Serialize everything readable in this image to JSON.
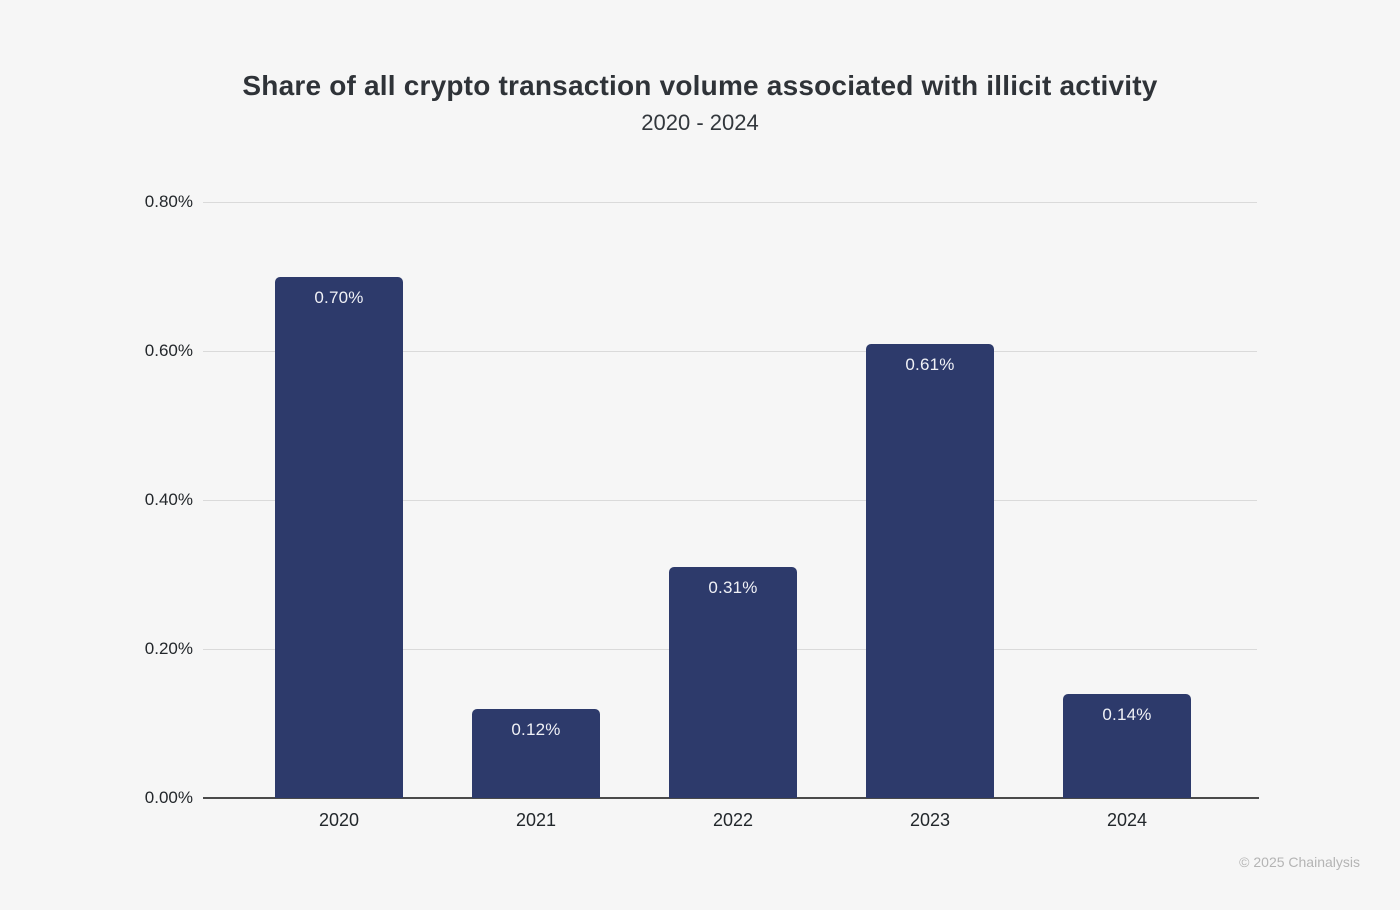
{
  "page": {
    "background_color": "#f6f6f6"
  },
  "header": {
    "title": "Share of all crypto transaction volume associated with illicit activity",
    "subtitle": "2020 - 2024"
  },
  "footer": {
    "attribution": "© 2025 Chainalysis"
  },
  "chart_data": {
    "type": "bar",
    "title": "Share of all crypto transaction volume associated with illicit activity",
    "subtitle": "2020 - 2024",
    "categories": [
      "2020",
      "2021",
      "2022",
      "2023",
      "2024"
    ],
    "values": [
      0.7,
      0.12,
      0.31,
      0.61,
      0.14
    ],
    "data_labels": [
      "0.70%",
      "0.12%",
      "0.31%",
      "0.61%",
      "0.14%"
    ],
    "xlabel": "",
    "ylabel": "",
    "ylim": [
      0,
      0.8
    ],
    "y_ticks": [
      {
        "value": 0.8,
        "label": "0.80%"
      },
      {
        "value": 0.6,
        "label": "0.60%"
      },
      {
        "value": 0.4,
        "label": "0.40%"
      },
      {
        "value": 0.2,
        "label": "0.20%"
      },
      {
        "value": 0.0,
        "label": "0.00%"
      }
    ],
    "grid": true,
    "legend": "none",
    "bar_color": "#2d3a6b",
    "data_label_color": "#f0f1f6",
    "gridline_color": "#dadada",
    "axis_line_color": "#4a4a4a"
  }
}
